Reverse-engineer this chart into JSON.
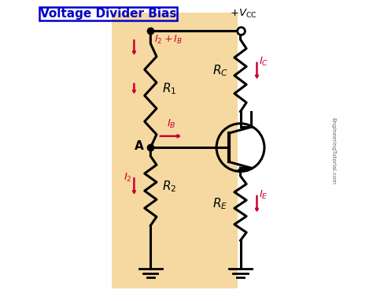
{
  "title": "Voltage Divider Bias",
  "bg_color": "#ffffff",
  "panel_color": "#f5d9a0",
  "wire_color": "#000000",
  "arrow_color": "#cc0033",
  "text_color": "#000000",
  "title_color": "#0000cc",
  "watermark": "EngineeringTutorial.com"
}
